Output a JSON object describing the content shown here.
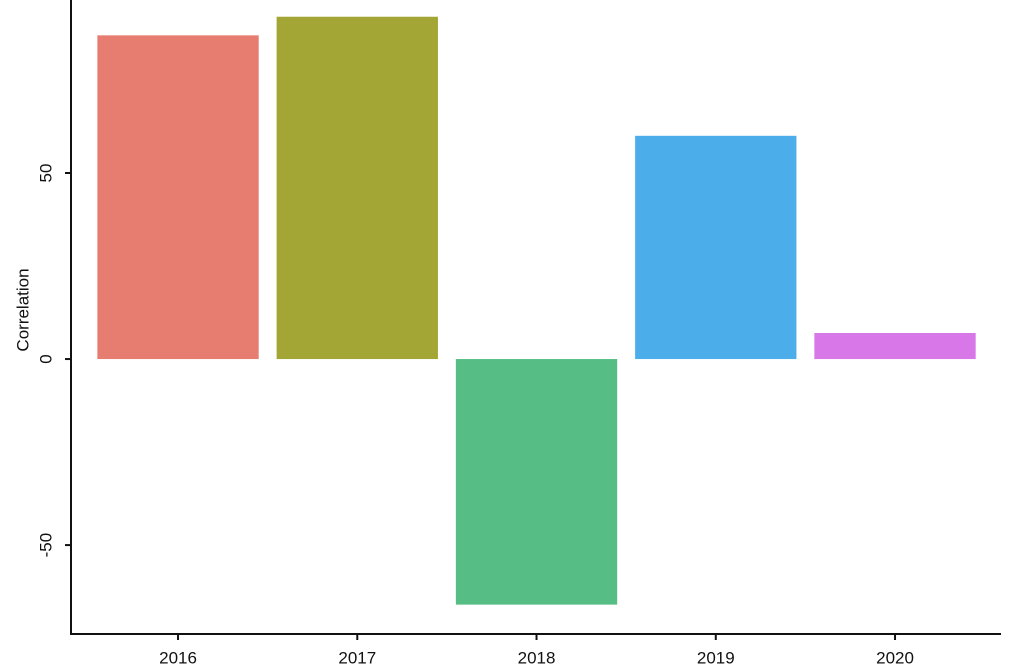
{
  "chart_data": {
    "type": "bar",
    "y_label": "Correlation",
    "categories": [
      "2016",
      "2017",
      "2018",
      "2019",
      "2020"
    ],
    "values": [
      87,
      92,
      -66,
      60,
      7
    ],
    "colors": [
      "#e77c70",
      "#a3a535",
      "#56bd84",
      "#4baeeb",
      "#d878e8"
    ],
    "ylim": [
      -73.9,
      96.5
    ],
    "yticks": [
      -50,
      0,
      50
    ],
    "grid": false
  }
}
